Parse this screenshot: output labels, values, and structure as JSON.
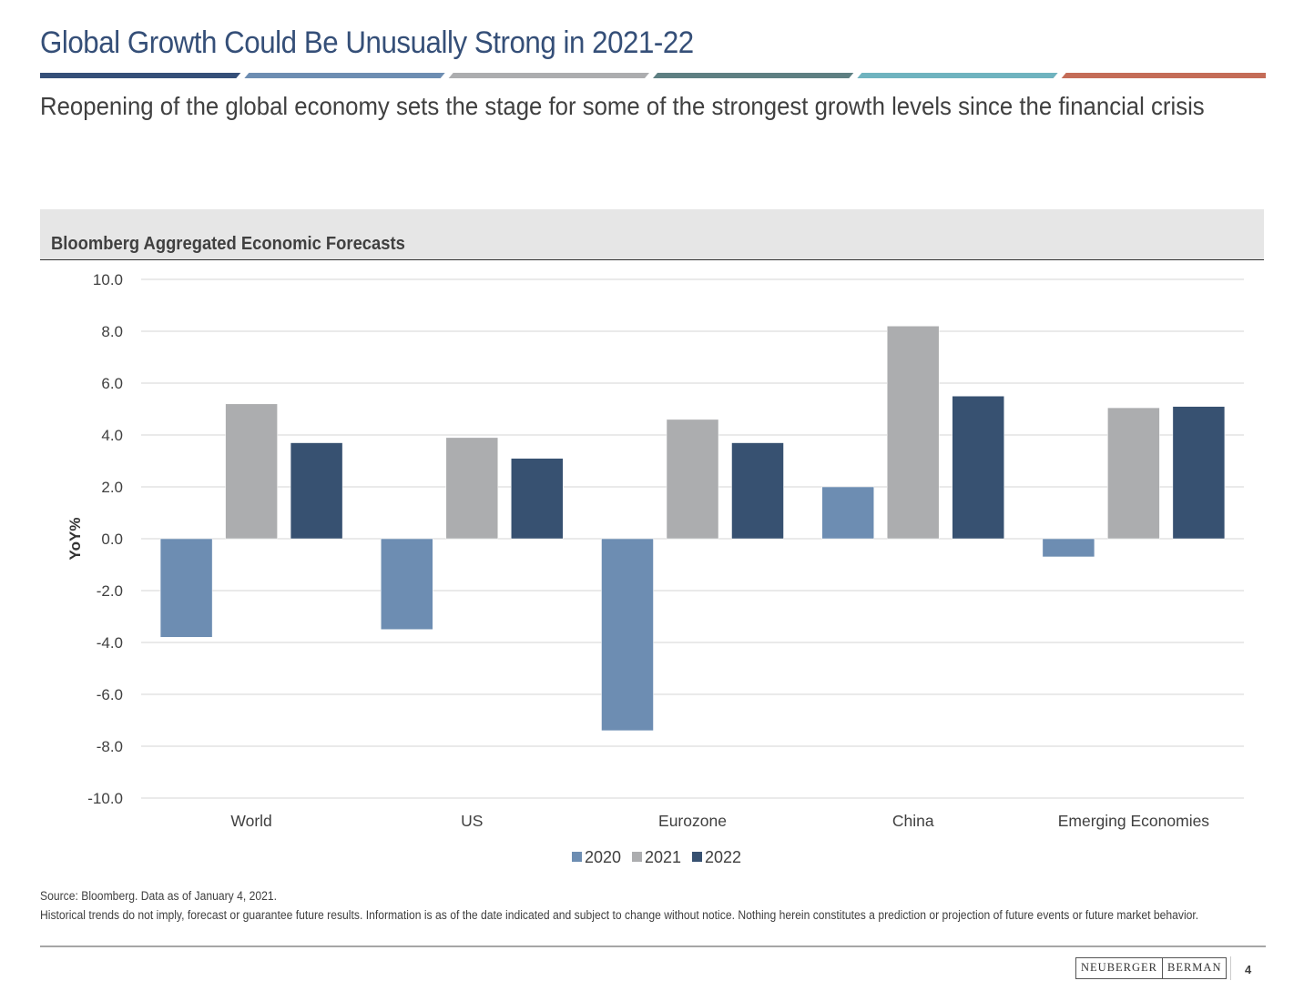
{
  "header": {
    "title": "Global Growth Could Be Unusually Strong in 2021-22",
    "subtitle": "Reopening of the global economy sets the stage for some of the strongest growth levels since the financial crisis",
    "stripe_colors": [
      "#354f78",
      "#6d8db2",
      "#acadaf",
      "#5e7f82",
      "#6fb3bf",
      "#c46c57"
    ]
  },
  "panel": {
    "title": "Bloomberg Aggregated Economic Forecasts"
  },
  "chart_data": {
    "type": "bar",
    "title": "Bloomberg Aggregated Economic Forecasts",
    "xlabel": "",
    "ylabel": "YoY%",
    "ylim": [
      -10,
      10
    ],
    "yticks": [
      10,
      8,
      6,
      4,
      2,
      0,
      -2,
      -4,
      -6,
      -8,
      -10
    ],
    "ytick_labels": [
      "10.0",
      "8.0",
      "6.0",
      "4.0",
      "2.0",
      "0.0",
      "-2.0",
      "-4.0",
      "-6.0",
      "-8.0",
      "-10.0"
    ],
    "grid": true,
    "legend_position": "bottom-center",
    "categories": [
      "World",
      "US",
      "Eurozone",
      "China",
      "Emerging Economies"
    ],
    "series": [
      {
        "name": "2020",
        "color": "#6d8db2",
        "values": [
          -3.8,
          -3.5,
          -7.4,
          2.0,
          -0.7
        ]
      },
      {
        "name": "2021",
        "color": "#acadaf",
        "values": [
          5.2,
          3.9,
          4.6,
          8.2,
          5.05
        ]
      },
      {
        "name": "2022",
        "color": "#375171",
        "values": [
          3.7,
          3.1,
          3.7,
          5.5,
          5.1
        ]
      }
    ]
  },
  "footer": {
    "source": "Source: Bloomberg.  Data as of January 4, 2021.",
    "disclaimer": "Historical trends do not imply, forecast or guarantee future results. Information is as of the date indicated and subject to change without notice. Nothing herein constitutes a prediction or projection of future events or future market behavior.",
    "logo_left": "NEUBERGER",
    "logo_right": "BERMAN",
    "page_number": "4"
  }
}
